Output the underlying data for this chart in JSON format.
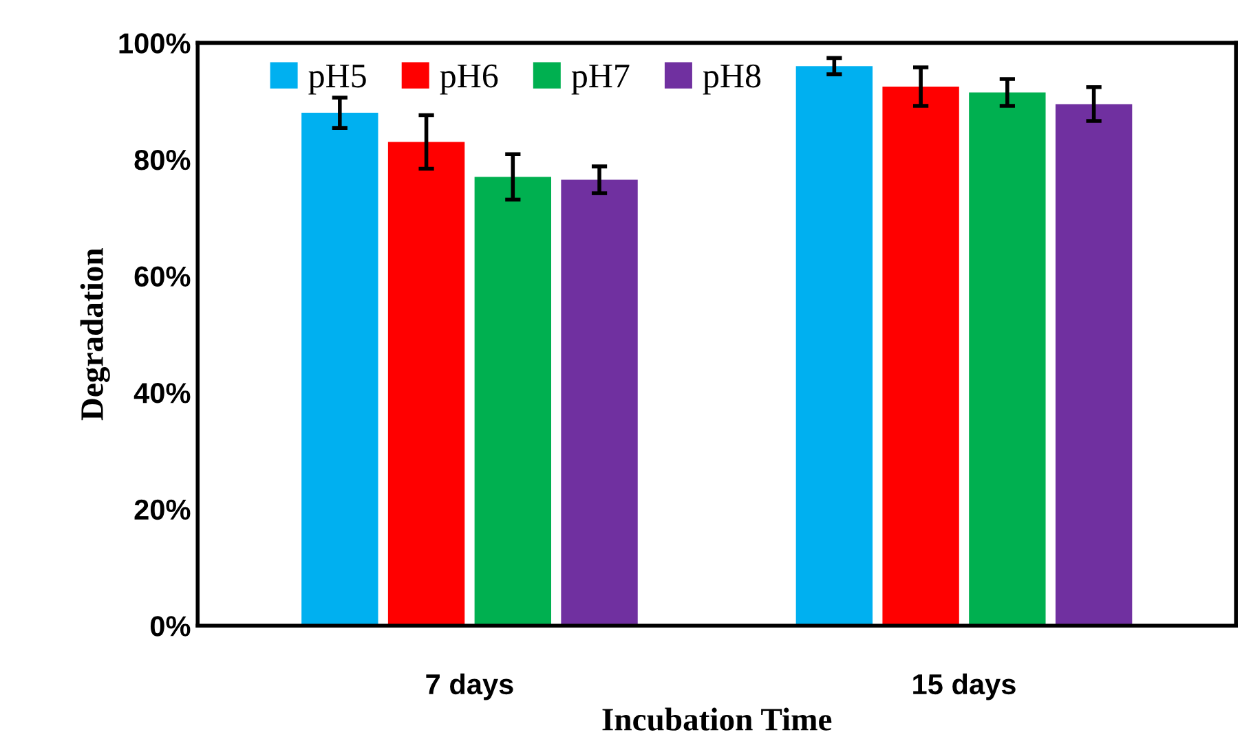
{
  "chart_data": {
    "type": "bar",
    "xlabel": "Incubation Time",
    "ylabel": "Degradation",
    "categories": [
      "7 days",
      "15 days"
    ],
    "series": [
      {
        "name": "pH5",
        "color": "#00b0f0",
        "values": [
          88,
          96
        ],
        "errors": [
          2.6,
          1.4
        ]
      },
      {
        "name": "pH6",
        "color": "#ff0000",
        "values": [
          83,
          92.5
        ],
        "errors": [
          4.6,
          3.3
        ]
      },
      {
        "name": "pH7",
        "color": "#00b050",
        "values": [
          77,
          91.5
        ],
        "errors": [
          3.9,
          2.3
        ]
      },
      {
        "name": "pH8",
        "color": "#7030a0",
        "values": [
          76.5,
          89.5
        ],
        "errors": [
          2.3,
          2.9
        ]
      }
    ],
    "ylim": [
      0,
      100
    ],
    "yticks": [
      {
        "value": 0,
        "label": "0%"
      },
      {
        "value": 20,
        "label": "20%"
      },
      {
        "value": 40,
        "label": "40%"
      },
      {
        "value": 60,
        "label": "60%"
      },
      {
        "value": 80,
        "label": "80%"
      },
      {
        "value": 100,
        "label": "100%"
      }
    ],
    "grid": false,
    "legend": "top"
  }
}
